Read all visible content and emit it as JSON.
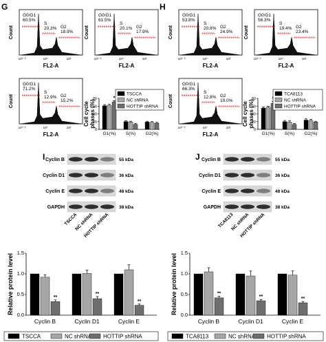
{
  "panel_letters": {
    "G": "G",
    "H": "H",
    "I": "I",
    "J": "J"
  },
  "flow": {
    "ylabel": "Count",
    "xlabel": "FL2-A",
    "tick_labels": [
      "10⁰⁻²",
      "10⁰",
      "10²"
    ],
    "plots": [
      {
        "g0g1": "G0/G1\n60.5%",
        "s": "S\n20.3%",
        "g2": "G2\n18.9%"
      },
      {
        "g0g1": "G0/G1\n61.5%",
        "s": "S\n20.1%",
        "g2": "G2\n17.9%"
      },
      {
        "g0g1": "G0/G1\n71.2%",
        "s": "S\n12.9%",
        "g2": "G2\n15.2%"
      },
      {
        "g0g1": "G0/G1\n53.8%",
        "s": "S\n20.8%",
        "g2": "G2\n24.9%"
      },
      {
        "g0g1": "G0/G1\n56.3%",
        "s": "S\n19.4%",
        "g2": "G2\n23.4%"
      },
      {
        "g0g1": "G0/G1\n66.3%",
        "s": "S\n12.8%",
        "g2": "G2\n19.0%"
      }
    ]
  },
  "blot": {
    "left": {
      "rows": [
        {
          "name": "Cyclin B",
          "kda": "55 kDa"
        },
        {
          "name": "Cyclin D1",
          "kda": "36 kDa"
        },
        {
          "name": "Cyclin E",
          "kda": "48 kDa"
        },
        {
          "name": "GAPDH",
          "kda": "38 kDa"
        }
      ],
      "lanes": [
        "TSCCA",
        "NC shRNA",
        "HOTTIP shRNA"
      ]
    },
    "right": {
      "rows": [
        {
          "name": "Cyclin B",
          "kda": "55 kDa"
        },
        {
          "name": "Cyclin D1",
          "kda": "36 kDa"
        },
        {
          "name": "Cyclin E",
          "kda": "48 kDa"
        },
        {
          "name": "GAPDH",
          "kda": "38 kDa"
        }
      ],
      "lanes": [
        "TCA8113",
        "NC shRNA",
        "HOTTIP shRNA"
      ]
    }
  },
  "colors": {
    "parent": "#000000",
    "nc": "#a6a6a6",
    "sh": "#6e6e6e"
  },
  "chart_data": [
    {
      "type": "bar",
      "panel": "G",
      "categories": [
        "G1(%)",
        "S(%)",
        "G2(%)"
      ],
      "ylabel": "Cell cycle\nphases (%)",
      "ylim": [
        0,
        80
      ],
      "yticks": [
        0,
        20,
        40,
        60,
        80
      ],
      "series": [
        {
          "name": "TSCCA",
          "values": [
            61,
            20,
            19
          ],
          "err": [
            3,
            2,
            2
          ]
        },
        {
          "name": "NC shRNA",
          "values": [
            62,
            19,
            18
          ],
          "err": [
            3,
            2,
            2
          ]
        },
        {
          "name": "HOTTIP shRNA",
          "values": [
            71,
            13,
            16
          ],
          "err": [
            3,
            2,
            2
          ]
        }
      ],
      "annotations": [
        "*",
        "",
        ""
      ]
    },
    {
      "type": "bar",
      "panel": "H",
      "categories": [
        "G1(%)",
        "S(%)",
        "G2(%)"
      ],
      "ylabel": "Cell cycle\nphases (%)",
      "ylim": [
        0,
        80
      ],
      "yticks": [
        0,
        20,
        40,
        60,
        80
      ],
      "series": [
        {
          "name": "TCA8113",
          "values": [
            55,
            20,
            24
          ],
          "err": [
            3,
            3,
            3
          ]
        },
        {
          "name": "NC shRNA",
          "values": [
            57,
            19,
            23
          ],
          "err": [
            3,
            3,
            3
          ]
        },
        {
          "name": "HOTTIP shRNA",
          "values": [
            67,
            13,
            19
          ],
          "err": [
            5,
            2,
            2
          ]
        }
      ],
      "annotations": [
        "*",
        "",
        ""
      ]
    },
    {
      "type": "bar",
      "panel": "I",
      "categories": [
        "Cyclin B",
        "Cyclin D1",
        "Cyclin E"
      ],
      "ylabel": "Relative protein level",
      "ylim": [
        0,
        1.5
      ],
      "yticks": [
        0.0,
        0.5,
        1.0,
        1.5
      ],
      "series": [
        {
          "name": "TSCCA",
          "values": [
            1.0,
            1.0,
            1.0
          ],
          "err": [
            0,
            0,
            0
          ]
        },
        {
          "name": "NC shRNA",
          "values": [
            0.92,
            1.01,
            1.1
          ],
          "err": [
            0.06,
            0.08,
            0.12
          ]
        },
        {
          "name": "HOTTIP shRNA",
          "values": [
            0.33,
            0.4,
            0.24
          ],
          "err": [
            0.04,
            0.05,
            0.03
          ]
        }
      ],
      "annotations": [
        "**",
        "**",
        "**"
      ]
    },
    {
      "type": "bar",
      "panel": "J",
      "categories": [
        "Cyclin B",
        "Cyclin D1",
        "Cyclin E"
      ],
      "ylabel": "Relative protein level",
      "ylim": [
        0,
        1.5
      ],
      "yticks": [
        0.0,
        0.5,
        1.0,
        1.5
      ],
      "series": [
        {
          "name": "TCA8113",
          "values": [
            1.0,
            1.0,
            1.0
          ],
          "err": [
            0,
            0,
            0
          ]
        },
        {
          "name": "NC shRNA",
          "values": [
            1.05,
            0.95,
            0.97
          ],
          "err": [
            0.1,
            0.12,
            0.1
          ]
        },
        {
          "name": "HOTTIP shRNA",
          "values": [
            0.42,
            0.35,
            0.3
          ],
          "err": [
            0.04,
            0.03,
            0.03
          ]
        }
      ],
      "annotations": [
        "**",
        "**",
        "**"
      ]
    }
  ],
  "bottom_legend": {
    "left": [
      "TSCCA",
      "NC shRNA",
      "HOTTIP shRNA"
    ],
    "right": [
      "TCA8113",
      "NC shRNA",
      "HOTTIP shRNA"
    ]
  }
}
